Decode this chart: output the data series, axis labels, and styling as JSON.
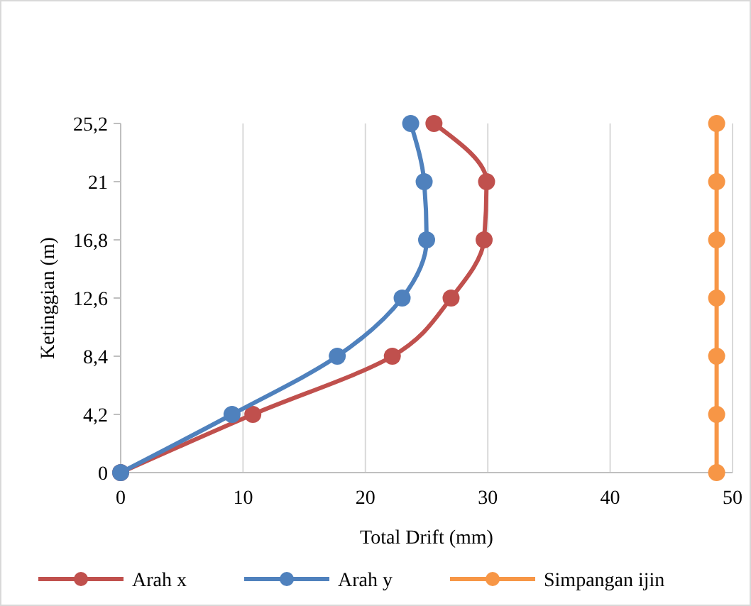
{
  "chart_data": {
    "type": "line",
    "xlabel": "Total Drift (mm)",
    "ylabel": "Ketinggian (m)",
    "xlim": [
      0,
      50
    ],
    "xticks": [
      0,
      10,
      20,
      30,
      40,
      50
    ],
    "ylim": [
      0,
      25.2
    ],
    "yticks": [
      0,
      {
        "value": 4.2,
        "label": "4,2"
      },
      {
        "value": 8.4,
        "label": "8,4"
      },
      {
        "value": 12.6,
        "label": "12,6"
      },
      {
        "value": 16.8,
        "label": "16,8"
      },
      21,
      {
        "value": 25.2,
        "label": "25,2"
      }
    ],
    "grid": "x",
    "legend": "bottom",
    "marker": "circle",
    "line_style": "solid",
    "series": [
      {
        "name": "Arah x",
        "color": "#c0504d",
        "x": [
          0,
          10.8,
          22.2,
          27.0,
          29.7,
          29.9,
          25.6
        ],
        "values": [
          0,
          4.2,
          8.4,
          12.6,
          16.8,
          21,
          25.2
        ]
      },
      {
        "name": "Arah y",
        "color": "#4f81bd",
        "x": [
          0,
          9.1,
          17.7,
          23.0,
          25.0,
          24.8,
          23.7
        ],
        "values": [
          0,
          4.2,
          8.4,
          12.6,
          16.8,
          21,
          25.2
        ]
      },
      {
        "name": "Simpangan ijin",
        "color": "#f79646",
        "x": [
          48.7,
          48.7,
          48.7,
          48.7,
          48.7,
          48.7,
          48.7
        ],
        "values": [
          0,
          4.2,
          8.4,
          12.6,
          16.8,
          21,
          25.2
        ]
      }
    ]
  }
}
